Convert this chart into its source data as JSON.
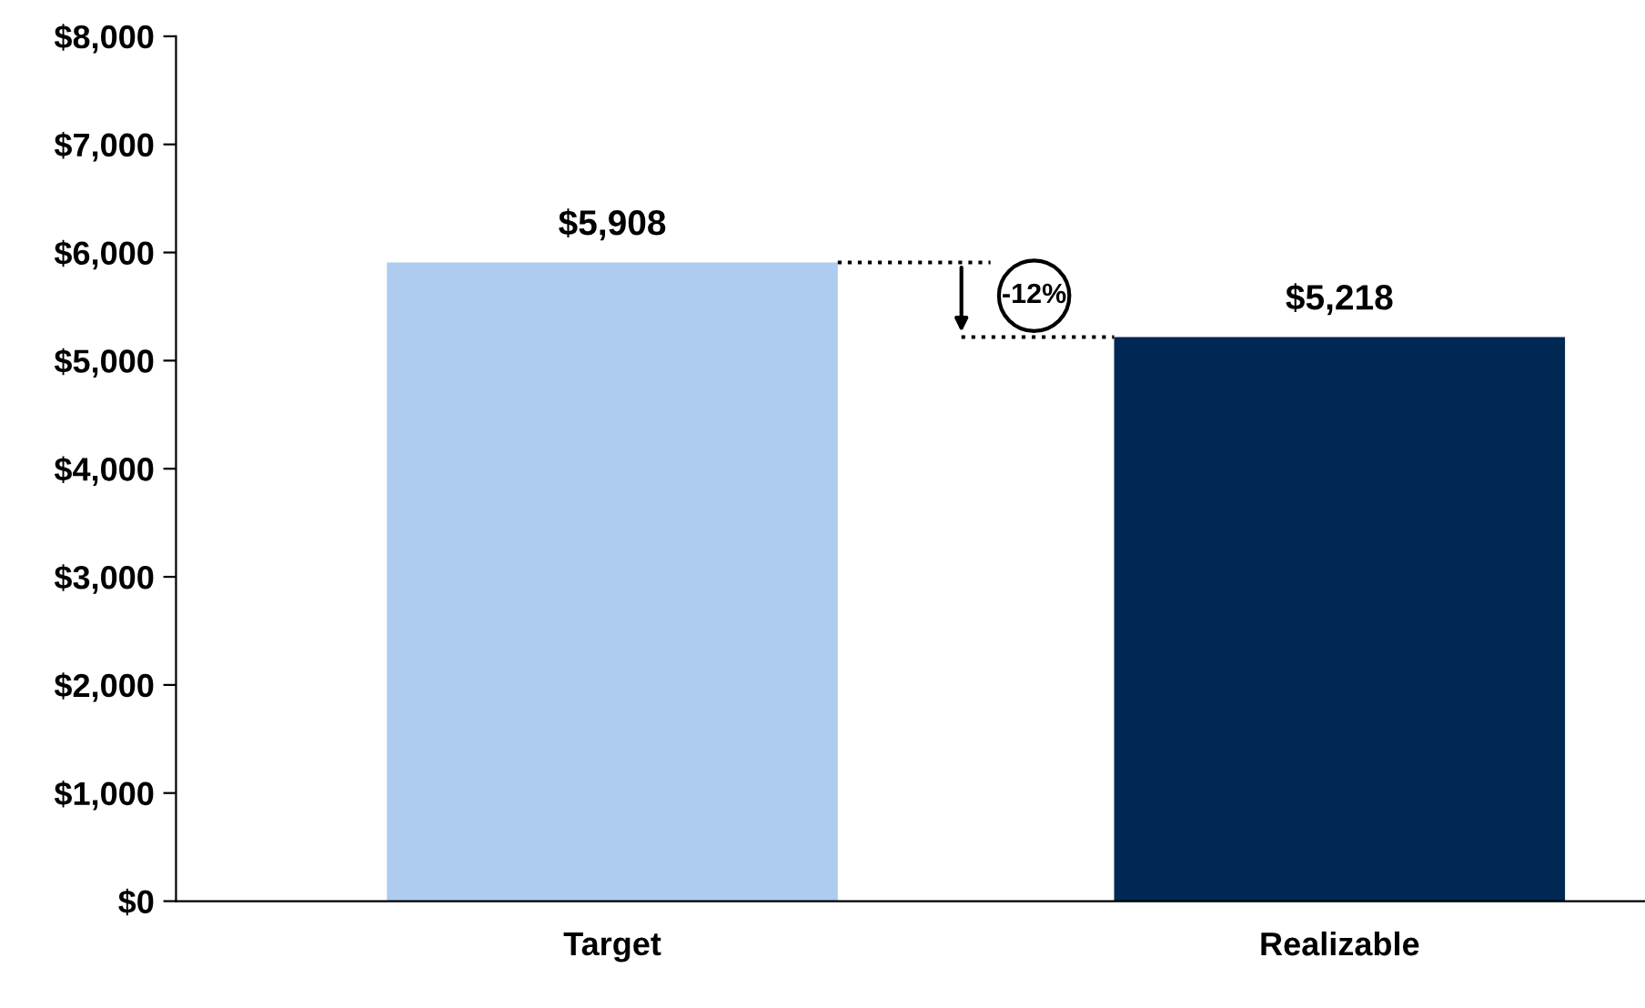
{
  "chart_data": {
    "type": "bar",
    "categories": [
      "Target",
      "Realizable"
    ],
    "values": [
      5908,
      5218
    ],
    "colors": [
      "#aecbf0",
      "#002855"
    ],
    "value_labels": [
      "$5,908",
      "$5,218"
    ],
    "ylim": [
      0,
      8000
    ],
    "yticks": [
      {
        "value": 0,
        "label": "$0"
      },
      {
        "value": 1000,
        "label": "$1,000"
      },
      {
        "value": 2000,
        "label": "$2,000"
      },
      {
        "value": 3000,
        "label": "$3,000"
      },
      {
        "value": 4000,
        "label": "$4,000"
      },
      {
        "value": 5000,
        "label": "$5,000"
      },
      {
        "value": 6000,
        "label": "$6,000"
      },
      {
        "value": 7000,
        "label": "$7,000"
      },
      {
        "value": 8000,
        "label": "$8,000"
      }
    ],
    "annotations": [
      {
        "text": "-12%",
        "y": 5600
      }
    ],
    "grid": false,
    "legend": false
  }
}
